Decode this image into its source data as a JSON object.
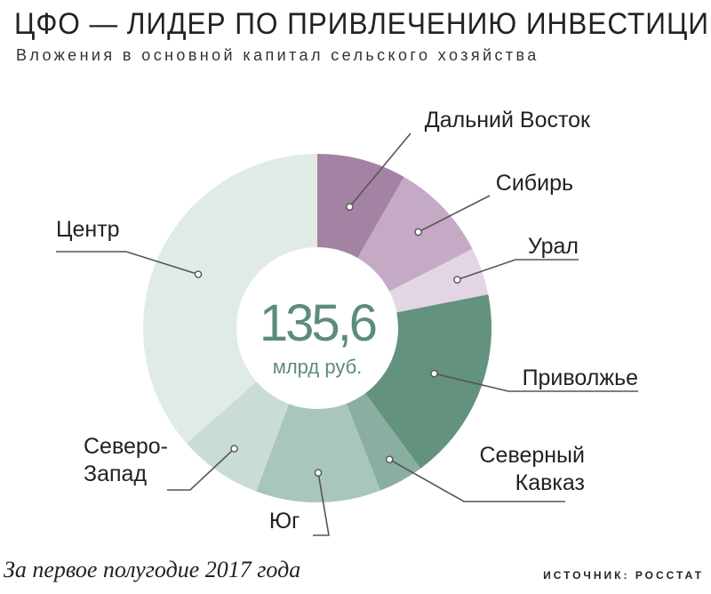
{
  "header": {
    "title": "ЦФО — ЛИДЕР ПО ПРИВЛЕЧЕНИЮ ИНВЕСТИЦИЙ",
    "subtitle": "Вложения в основной капитал сельского хозяйства"
  },
  "chart_data": {
    "type": "pie",
    "title": "ЦФО — ЛИДЕР ПО ПРИВЛЕЧЕНИЮ ИНВЕСТИЦИЙ",
    "subtitle": "Вложения в основной капитал сельского хозяйства",
    "total": {
      "value": "135,6",
      "unit": "млрд руб."
    },
    "slices": [
      {
        "label": [
          "Дальний Восток"
        ],
        "share_pct": 8.3,
        "color": "#a482a3"
      },
      {
        "label": [
          "Сибирь"
        ],
        "share_pct": 9.2,
        "color": "#c5aac6"
      },
      {
        "label": [
          "Урал"
        ],
        "share_pct": 4.4,
        "color": "#e2d6e4"
      },
      {
        "label": [
          "Приволжье"
        ],
        "share_pct": 18.0,
        "color": "#63927f"
      },
      {
        "label": [
          "Северный",
          "Кавказ"
        ],
        "share_pct": 4.2,
        "color": "#8aae9f"
      },
      {
        "label": [
          "Юг"
        ],
        "share_pct": 11.6,
        "color": "#a9c6bb"
      },
      {
        "label": [
          "Северо-",
          "Запад"
        ],
        "share_pct": 7.8,
        "color": "#c9ddd6"
      },
      {
        "label": [
          "Центр"
        ],
        "share_pct": 36.5,
        "color": "#e0ebe6"
      }
    ]
  },
  "footer": {
    "note": "За первое полугодие 2017 года",
    "source": "ИСТОЧНИК: РОССТАТ"
  }
}
